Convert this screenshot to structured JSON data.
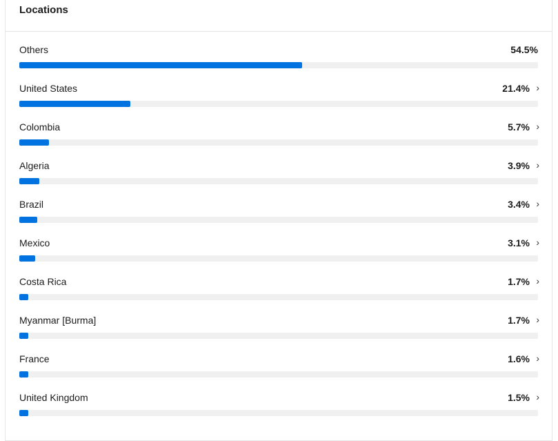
{
  "title": "Locations",
  "accent_color": "#0073e0",
  "locations": [
    {
      "name": "Others",
      "percent_label": "54.5%",
      "percent": 54.5,
      "chevron": false
    },
    {
      "name": "United States",
      "percent_label": "21.4%",
      "percent": 21.4,
      "chevron": true
    },
    {
      "name": "Colombia",
      "percent_label": "5.7%",
      "percent": 5.7,
      "chevron": true
    },
    {
      "name": "Algeria",
      "percent_label": "3.9%",
      "percent": 3.9,
      "chevron": true
    },
    {
      "name": "Brazil",
      "percent_label": "3.4%",
      "percent": 3.4,
      "chevron": true
    },
    {
      "name": "Mexico",
      "percent_label": "3.1%",
      "percent": 3.1,
      "chevron": true
    },
    {
      "name": "Costa Rica",
      "percent_label": "1.7%",
      "percent": 1.7,
      "chevron": true
    },
    {
      "name": "Myanmar [Burma]",
      "percent_label": "1.7%",
      "percent": 1.7,
      "chevron": true
    },
    {
      "name": "France",
      "percent_label": "1.6%",
      "percent": 1.6,
      "chevron": true
    },
    {
      "name": "United Kingdom",
      "percent_label": "1.5%",
      "percent": 1.5,
      "chevron": true
    }
  ]
}
